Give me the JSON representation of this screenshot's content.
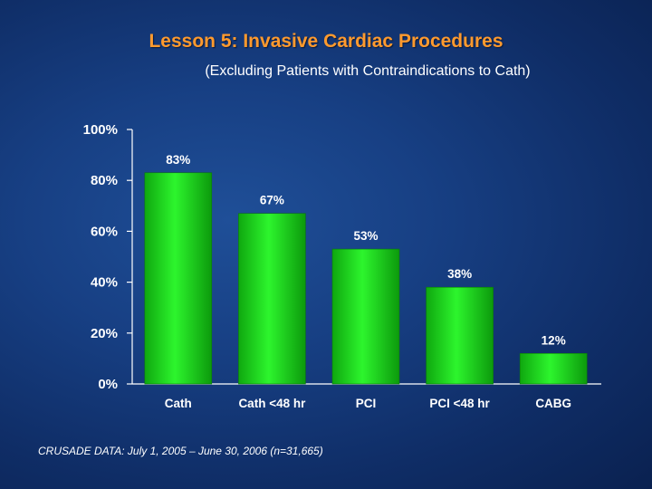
{
  "slide": {
    "title": "Lesson 5:  Invasive Cardiac Procedures",
    "subtitle": "(Excluding Patients with Contraindications to Cath)",
    "footnote": "CRUSADE DATA: July 1, 2005 – June 30, 2006 (n=31,665)"
  },
  "chart_data": {
    "type": "bar",
    "categories": [
      "Cath",
      "Cath <48 hr",
      "PCI",
      "PCI <48 hr",
      "CABG"
    ],
    "values": [
      83,
      67,
      53,
      38,
      12
    ],
    "value_labels": [
      "83%",
      "67%",
      "53%",
      "38%",
      "12%"
    ],
    "ylim": [
      0,
      100
    ],
    "yticks": [
      0,
      20,
      40,
      60,
      80,
      100
    ],
    "ytick_labels": [
      "0%",
      "20%",
      "40%",
      "60%",
      "80%",
      "100%"
    ],
    "title": "",
    "xlabel": "",
    "ylabel": "",
    "bar_color": "#19e619"
  }
}
